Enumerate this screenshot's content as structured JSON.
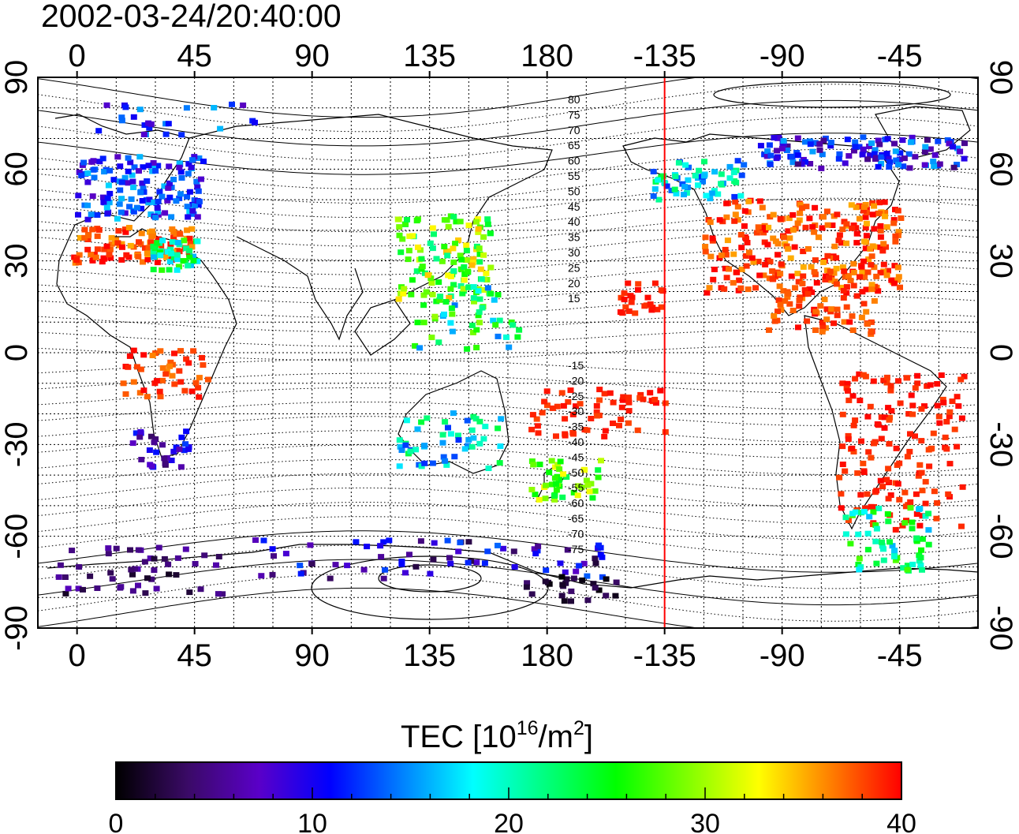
{
  "header": {
    "timestamp": "2002-03-24/20:40:00"
  },
  "map": {
    "longitude_ticks": [
      "0",
      "45",
      "90",
      "135",
      "180",
      "-135",
      "-90",
      "-45"
    ],
    "latitude_ticks": [
      "90",
      "60",
      "30",
      "0",
      "-30",
      "-60",
      "-90"
    ],
    "contour_labels_north": [
      "80",
      "75",
      "70",
      "65",
      "60",
      "55",
      "50",
      "45",
      "40",
      "35",
      "30",
      "25",
      "20",
      "15"
    ],
    "contour_labels_south": [
      "-15",
      "-20",
      "-25",
      "-30",
      "-35",
      "-40",
      "-45",
      "-50",
      "-55",
      "-60",
      "-65",
      "-70",
      "-75"
    ],
    "terminator_longitude": -135,
    "terminator_color": "#ff0000",
    "grid": "dotted"
  },
  "colorbar": {
    "title_prefix": "TEC  [10",
    "title_exp1": "16",
    "title_mid": "/m",
    "title_exp2": "2",
    "title_suffix": "]",
    "tick_labels": [
      "0",
      "10",
      "20",
      "30",
      "40"
    ],
    "range": [
      0,
      40
    ],
    "stops": [
      "#000000",
      "#3a0a66",
      "#5a00c8",
      "#0000ff",
      "#0080ff",
      "#00ffff",
      "#00ff80",
      "#00ff00",
      "#80ff00",
      "#ffff00",
      "#ff8000",
      "#ff0000"
    ]
  }
}
